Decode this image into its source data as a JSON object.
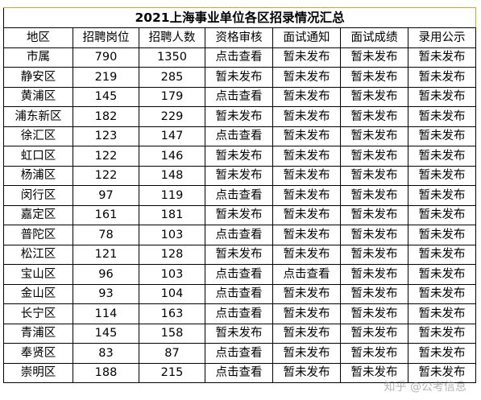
{
  "title": "2021上海事业单位各区招录情况汇总",
  "headers": [
    "地区",
    "招聘岗位",
    "招聘人数",
    "资格审核",
    "面试通知",
    "面试成绩",
    "录用公示"
  ],
  "rows": [
    {
      "area": "市属",
      "positions": "790",
      "people": "1350",
      "qualification": "点击查看",
      "interview_notice": "暂未发布",
      "interview_score": "暂未发布",
      "hiring_notice": "暂未发布"
    },
    {
      "area": "静安区",
      "positions": "219",
      "people": "285",
      "qualification": "暂未发布",
      "interview_notice": "暂未发布",
      "interview_score": "暂未发布",
      "hiring_notice": "暂未发布"
    },
    {
      "area": "黄浦区",
      "positions": "145",
      "people": "179",
      "qualification": "点击查看",
      "interview_notice": "暂未发布",
      "interview_score": "暂未发布",
      "hiring_notice": "暂未发布"
    },
    {
      "area": "浦东新区",
      "positions": "182",
      "people": "229",
      "qualification": "暂未发布",
      "interview_notice": "暂未发布",
      "interview_score": "暂未发布",
      "hiring_notice": "暂未发布"
    },
    {
      "area": "徐汇区",
      "positions": "123",
      "people": "147",
      "qualification": "点击查看",
      "interview_notice": "暂未发布",
      "interview_score": "暂未发布",
      "hiring_notice": "暂未发布"
    },
    {
      "area": "虹口区",
      "positions": "122",
      "people": "146",
      "qualification": "暂未发布",
      "interview_notice": "暂未发布",
      "interview_score": "暂未发布",
      "hiring_notice": "暂未发布"
    },
    {
      "area": "杨浦区",
      "positions": "122",
      "people": "148",
      "qualification": "暂未发布",
      "interview_notice": "暂未发布",
      "interview_score": "暂未发布",
      "hiring_notice": "暂未发布"
    },
    {
      "area": "闵行区",
      "positions": "97",
      "people": "119",
      "qualification": "点击查看",
      "interview_notice": "暂未发布",
      "interview_score": "暂未发布",
      "hiring_notice": "暂未发布"
    },
    {
      "area": "嘉定区",
      "positions": "161",
      "people": "181",
      "qualification": "暂未发布",
      "interview_notice": "暂未发布",
      "interview_score": "暂未发布",
      "hiring_notice": "暂未发布"
    },
    {
      "area": "普陀区",
      "positions": "78",
      "people": "103",
      "qualification": "点击查看",
      "interview_notice": "暂未发布",
      "interview_score": "暂未发布",
      "hiring_notice": "暂未发布"
    },
    {
      "area": "松江区",
      "positions": "121",
      "people": "128",
      "qualification": "暂未发布",
      "interview_notice": "暂未发布",
      "interview_score": "暂未发布",
      "hiring_notice": "暂未发布"
    },
    {
      "area": "宝山区",
      "positions": "96",
      "people": "103",
      "qualification": "点击查看",
      "interview_notice": "点击查看",
      "interview_score": "暂未发布",
      "hiring_notice": "暂未发布"
    },
    {
      "area": "金山区",
      "positions": "93",
      "people": "104",
      "qualification": "点击查看",
      "interview_notice": "暂未发布",
      "interview_score": "暂未发布",
      "hiring_notice": "暂未发布"
    },
    {
      "area": "长宁区",
      "positions": "114",
      "people": "163",
      "qualification": "点击查看",
      "interview_notice": "暂未发布",
      "interview_score": "暂未发布",
      "hiring_notice": "暂未发布"
    },
    {
      "area": "青浦区",
      "positions": "145",
      "people": "158",
      "qualification": "暂未发布",
      "interview_notice": "暂未发布",
      "interview_score": "暂未发布",
      "hiring_notice": "暂未发布"
    },
    {
      "area": "奉贤区",
      "positions": "83",
      "people": "87",
      "qualification": "点击查看",
      "interview_notice": "暂未发布",
      "interview_score": "暂未发布",
      "hiring_notice": "暂未发布"
    },
    {
      "area": "崇明区",
      "positions": "188",
      "people": "215",
      "qualification": "点击查看",
      "interview_notice": "暂未发布",
      "interview_score": "暂未发布",
      "hiring_notice": "暂未发布"
    }
  ],
  "link_text": "点击查看",
  "colors": {
    "link": "#d9231c",
    "title_border": "#d7a429",
    "grid": "#000000"
  },
  "watermark": "知乎 @公考信息"
}
